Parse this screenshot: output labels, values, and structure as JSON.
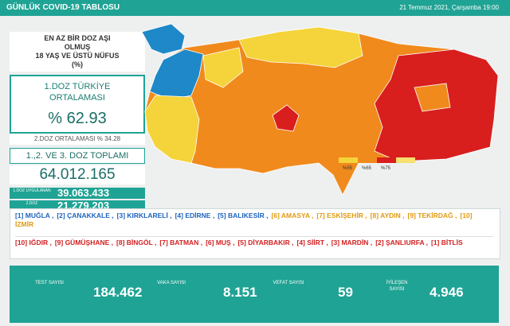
{
  "header": {
    "title": "GÜNLÜK COVID-19 TABLOSU",
    "date": "21 Temmuz 2021, Çarşamba 19:00"
  },
  "panel": {
    "heading": [
      "EN AZ BİR DOZ AŞI",
      "OLMUŞ",
      "18 YAŞ VE ÜSTÜ NÜFUS",
      "(%)"
    ],
    "average_label": [
      "1.DOZ TÜRKİYE",
      "ORTALAMASI"
    ],
    "average_value": "% 62.93",
    "second_dose": "2.DOZ ORTALAMASI  % 34.28",
    "total_label": "1.,2. VE 3. DOZ TOPLAMI",
    "total_value": "64.012.165",
    "rows": [
      {
        "label": "1.DOZ UYGULANAN",
        "value": "39.063.433"
      },
      {
        "label": "2.DOZ",
        "value": "21.279.203"
      }
    ]
  },
  "map_legend": [
    "%55",
    "%65",
    "%75"
  ],
  "lists": {
    "top": [
      "[1] MUĞLA ,",
      "[2] ÇANAKKALE ,",
      "[3] KIRKLARELİ ,",
      "[4] EDİRNE ,",
      "[5] BALIKESİR ,",
      "[6] AMASYA ,",
      "[7] ESKİŞEHİR ,",
      "[8] AYDIN ,",
      "[9] TEKİRDAĞ ,",
      "[10] İZMİR"
    ],
    "bottom": [
      "[10] IĞDIR ,",
      "[9] GÜMÜŞHANE ,",
      "[8] BİNGÖL ,",
      "[7] BATMAN ,",
      "[6] MUŞ ,",
      "[5] DİYARBAKIR ,",
      "[4] SİİRT ,",
      "[3] MARDİN ,",
      "[2] ŞANLIURFA ,",
      "[1] BİTLİS"
    ]
  },
  "stats": [
    {
      "label": "TEST SAYISI",
      "value": "184.462"
    },
    {
      "label": "VAKA SAYISI",
      "value": "8.151"
    },
    {
      "label": "VEFAT SAYISI",
      "value": "59"
    },
    {
      "label": "İYİLEŞEN SAYISI",
      "value": "4.946"
    }
  ]
}
